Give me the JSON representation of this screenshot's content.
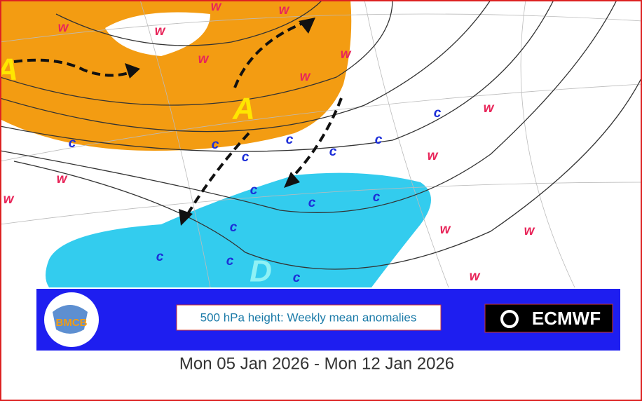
{
  "map": {
    "highs": [
      "A",
      "A"
    ],
    "lows": [
      "D"
    ],
    "warm_labels": [
      "w",
      "w",
      "w",
      "w",
      "w",
      "w",
      "w",
      "w",
      "w",
      "w",
      "w",
      "w",
      "w",
      "w"
    ],
    "cold_labels": [
      "c",
      "c",
      "c",
      "c",
      "c",
      "c",
      "c",
      "c",
      "c",
      "c",
      "c",
      "c",
      "c",
      "c"
    ]
  },
  "banner": {
    "title": "500 hPa height: Weekly mean anomalies",
    "logo_left": "BMCB",
    "logo_right": "ECMWF"
  },
  "date_range": "Mon 05 Jan 2026 - Mon 12 Jan 2026"
}
